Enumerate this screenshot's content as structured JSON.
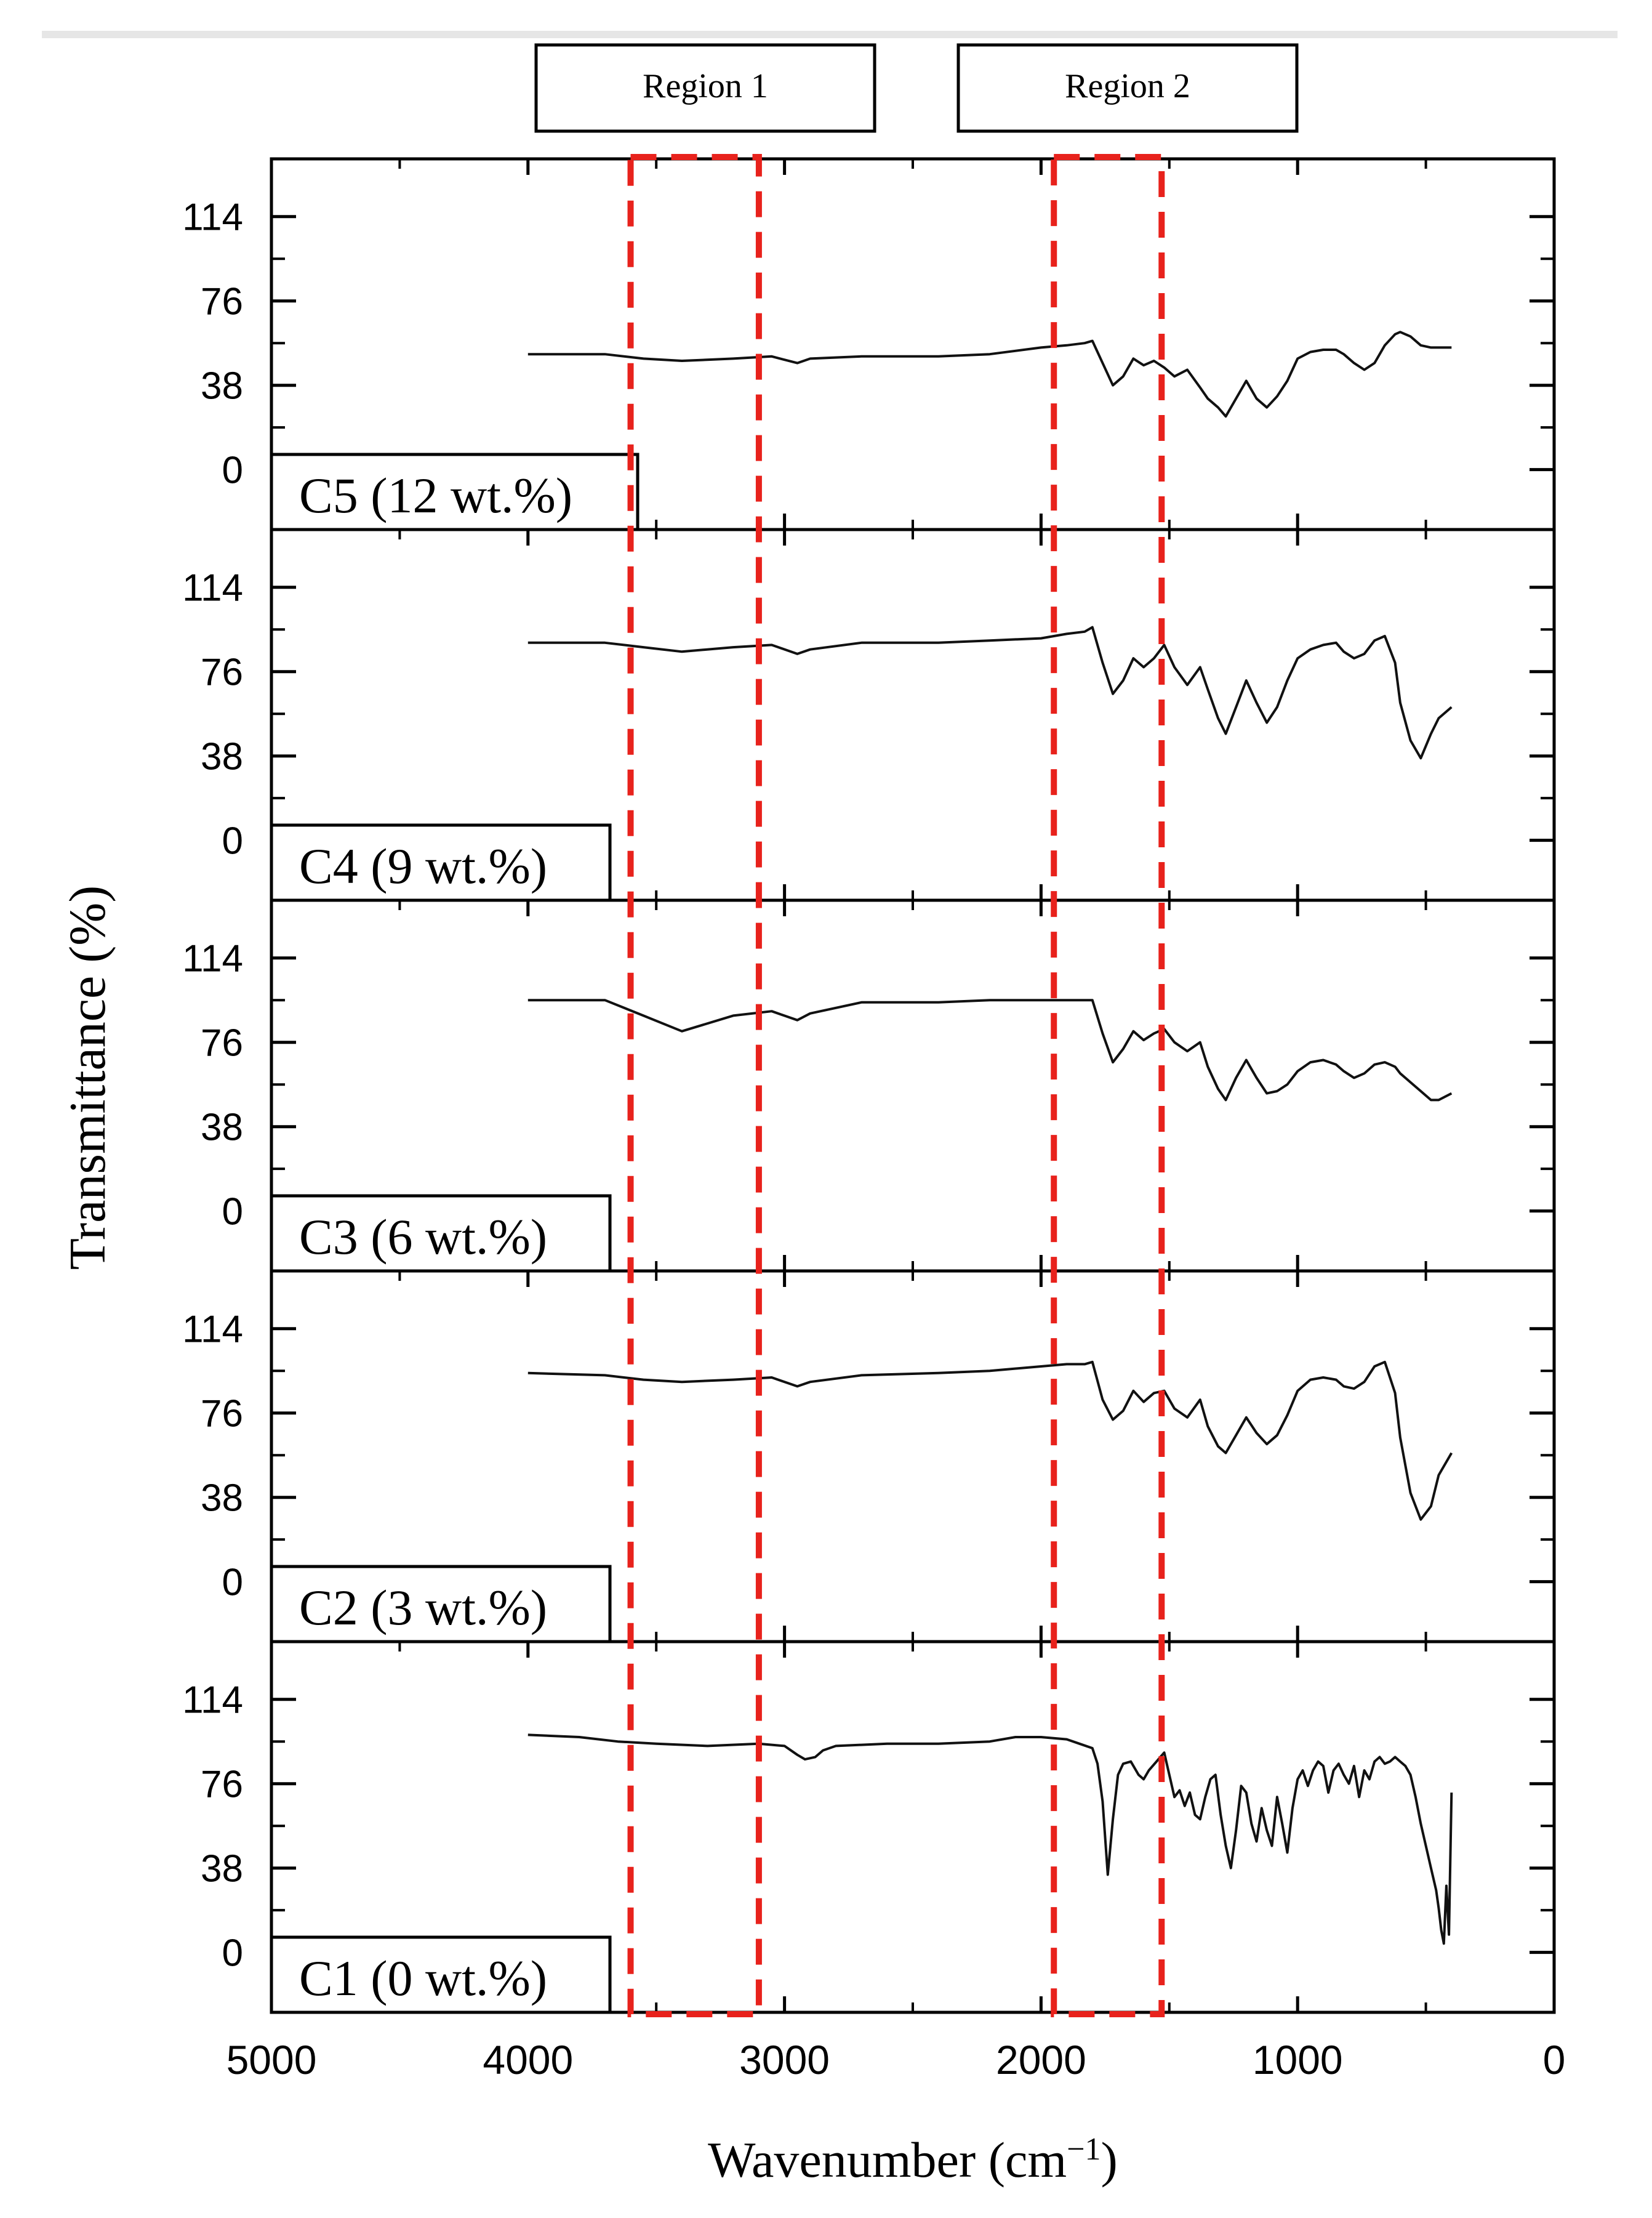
{
  "chart_data": {
    "type": "line",
    "layout": "stacked-panels",
    "xlabel": "Wavenumber (cm",
    "xlabel_superscript": "−1",
    "xlabel_close": ")",
    "ylabel": "Transmittance (%)",
    "xlim": [
      5000,
      0
    ],
    "ylim": [
      -27,
      140
    ],
    "x_ticks": [
      5000,
      4000,
      3000,
      2000,
      1000,
      0
    ],
    "x_tick_labels": [
      "5000",
      "4000",
      "3000",
      "2000",
      "1000",
      "0"
    ],
    "y_ticks": [
      0,
      38,
      76,
      114
    ],
    "y_tick_labels": [
      "0",
      "38",
      "76",
      "114"
    ],
    "regions": [
      {
        "label": "Region 1",
        "x_range": [
          3600,
          3100
        ]
      },
      {
        "label": "Region 2",
        "x_range": [
          1950,
          1530
        ]
      }
    ],
    "region_color": "#e8221c",
    "line_color": "#111111",
    "series": [
      {
        "name": "C5 (12 wt.%)",
        "x": [
          4000,
          3700,
          3550,
          3400,
          3200,
          3050,
          2950,
          2900,
          2700,
          2400,
          2200,
          2000,
          1900,
          1830,
          1800,
          1760,
          1720,
          1680,
          1640,
          1600,
          1560,
          1520,
          1480,
          1430,
          1380,
          1350,
          1310,
          1280,
          1240,
          1200,
          1160,
          1120,
          1080,
          1040,
          1000,
          950,
          900,
          850,
          820,
          780,
          740,
          700,
          660,
          620,
          600,
          560,
          520,
          480,
          450,
          400
        ],
        "y": [
          52,
          52,
          50,
          49,
          50,
          51,
          48,
          50,
          51,
          51,
          52,
          55,
          56,
          57,
          58,
          48,
          38,
          42,
          50,
          47,
          49,
          46,
          42,
          45,
          37,
          32,
          28,
          24,
          32,
          40,
          32,
          28,
          33,
          40,
          50,
          53,
          54,
          54,
          52,
          48,
          45,
          48,
          56,
          61,
          62,
          60,
          56,
          55,
          55,
          55
        ]
      },
      {
        "name": "C4 (9 wt.%)",
        "x": [
          4000,
          3700,
          3550,
          3400,
          3200,
          3050,
          2950,
          2900,
          2700,
          2400,
          2200,
          2000,
          1900,
          1830,
          1800,
          1760,
          1720,
          1680,
          1640,
          1600,
          1560,
          1520,
          1480,
          1430,
          1380,
          1350,
          1310,
          1280,
          1240,
          1200,
          1160,
          1120,
          1080,
          1040,
          1000,
          950,
          900,
          850,
          820,
          780,
          740,
          700,
          660,
          620,
          600,
          560,
          520,
          480,
          450,
          400
        ],
        "y": [
          89,
          89,
          87,
          85,
          87,
          88,
          84,
          86,
          89,
          89,
          90,
          91,
          93,
          94,
          96,
          80,
          66,
          72,
          82,
          78,
          82,
          88,
          78,
          70,
          78,
          68,
          55,
          48,
          60,
          72,
          62,
          53,
          60,
          72,
          82,
          86,
          88,
          89,
          85,
          82,
          84,
          90,
          92,
          80,
          62,
          45,
          37,
          48,
          55,
          60
        ]
      },
      {
        "name": "C3 (6 wt.%)",
        "x": [
          4000,
          3700,
          3550,
          3400,
          3200,
          3050,
          2950,
          2900,
          2700,
          2400,
          2200,
          2000,
          1900,
          1830,
          1800,
          1760,
          1720,
          1680,
          1640,
          1600,
          1560,
          1520,
          1480,
          1430,
          1380,
          1350,
          1310,
          1280,
          1240,
          1200,
          1160,
          1120,
          1080,
          1040,
          1000,
          950,
          900,
          850,
          820,
          780,
          740,
          700,
          660,
          620,
          600,
          560,
          520,
          480,
          450,
          400
        ],
        "y": [
          95,
          95,
          88,
          81,
          88,
          90,
          86,
          89,
          94,
          94,
          95,
          95,
          95,
          95,
          95,
          80,
          67,
          73,
          81,
          77,
          80,
          82,
          76,
          72,
          76,
          65,
          55,
          50,
          60,
          68,
          60,
          53,
          54,
          57,
          63,
          67,
          68,
          66,
          63,
          60,
          62,
          66,
          67,
          65,
          62,
          58,
          54,
          50,
          50,
          53
        ]
      },
      {
        "name": "C2 (3 wt.%)",
        "x": [
          4000,
          3700,
          3550,
          3400,
          3200,
          3050,
          2950,
          2900,
          2700,
          2400,
          2200,
          2000,
          1900,
          1830,
          1800,
          1760,
          1720,
          1680,
          1640,
          1600,
          1560,
          1520,
          1480,
          1430,
          1380,
          1350,
          1310,
          1280,
          1240,
          1200,
          1160,
          1120,
          1080,
          1040,
          1000,
          950,
          900,
          850,
          820,
          780,
          740,
          700,
          660,
          620,
          600,
          560,
          520,
          480,
          450,
          400
        ],
        "y": [
          94,
          93,
          91,
          90,
          91,
          92,
          88,
          90,
          93,
          94,
          95,
          97,
          98,
          98,
          99,
          82,
          73,
          77,
          86,
          81,
          85,
          86,
          78,
          74,
          82,
          70,
          61,
          58,
          66,
          74,
          67,
          62,
          66,
          75,
          86,
          91,
          92,
          91,
          88,
          87,
          90,
          97,
          99,
          85,
          65,
          40,
          28,
          34,
          48,
          58
        ]
      },
      {
        "name": "C1 (0 wt.%)",
        "x": [
          4000,
          3800,
          3650,
          3500,
          3300,
          3100,
          3000,
          2950,
          2920,
          2880,
          2850,
          2800,
          2600,
          2400,
          2200,
          2100,
          2000,
          1900,
          1850,
          1800,
          1780,
          1760,
          1740,
          1720,
          1700,
          1680,
          1650,
          1620,
          1600,
          1580,
          1550,
          1520,
          1500,
          1480,
          1460,
          1440,
          1420,
          1400,
          1380,
          1360,
          1340,
          1320,
          1300,
          1280,
          1260,
          1240,
          1220,
          1200,
          1180,
          1160,
          1140,
          1120,
          1100,
          1080,
          1060,
          1040,
          1020,
          1000,
          980,
          960,
          940,
          920,
          900,
          880,
          860,
          840,
          820,
          800,
          780,
          760,
          740,
          720,
          700,
          680,
          660,
          640,
          620,
          600,
          580,
          560,
          540,
          520,
          500,
          480,
          460,
          450,
          440,
          430,
          420,
          410,
          400
        ],
        "y": [
          98,
          97,
          95,
          94,
          93,
          94,
          93,
          89,
          87,
          88,
          91,
          93,
          94,
          94,
          95,
          97,
          97,
          96,
          94,
          92,
          85,
          68,
          35,
          60,
          80,
          85,
          86,
          80,
          78,
          82,
          86,
          90,
          80,
          70,
          73,
          66,
          72,
          62,
          60,
          70,
          78,
          80,
          62,
          48,
          38,
          55,
          75,
          72,
          58,
          50,
          65,
          55,
          48,
          70,
          58,
          45,
          65,
          78,
          82,
          75,
          82,
          86,
          84,
          72,
          82,
          85,
          80,
          76,
          84,
          70,
          82,
          78,
          86,
          88,
          85,
          86,
          88,
          86,
          84,
          80,
          70,
          58,
          48,
          38,
          28,
          20,
          10,
          4,
          30,
          8,
          72
        ]
      }
    ]
  }
}
